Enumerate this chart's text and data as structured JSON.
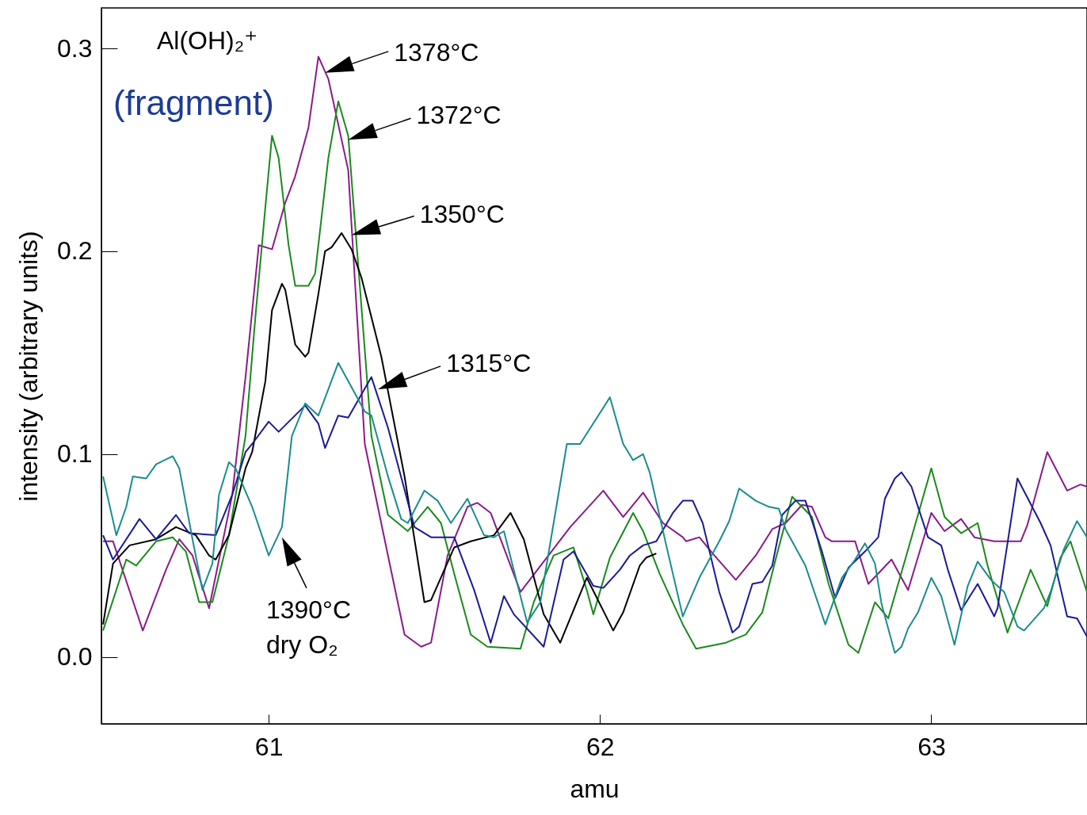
{
  "chart_data": {
    "type": "line",
    "xlabel": "amu",
    "ylabel": "intensity (arbitrary units)",
    "xlim": [
      60.495,
      63.47
    ],
    "ylim": [
      -0.033,
      0.32
    ],
    "xticks": [
      61,
      62,
      63
    ],
    "yticks": [
      {
        "value": 0,
        "label": "0.0"
      },
      0.1,
      0.2,
      0.3
    ],
    "marker": "none",
    "line_style": "solid",
    "annotations": [
      "Al(OH)₂⁺",
      "(fragment)",
      {
        "text": "1378°C",
        "x": 61.17,
        "y": 0.288
      },
      {
        "text": "1372°C",
        "x": 61.24,
        "y": 0.255
      },
      {
        "text": "1350°C",
        "x": 61.25,
        "y": 0.208
      },
      {
        "text": "1315°C",
        "x": 61.33,
        "y": 0.132
      },
      {
        "text": "1390°C\ndry O₂",
        "x": 61.04,
        "y": 0.059
      }
    ],
    "series": [
      {
        "color": "#8b1a8b",
        "x": [
          60.5,
          60.53,
          60.62,
          60.69,
          60.73,
          60.77,
          60.82,
          60.89,
          60.93,
          60.97,
          61.01,
          61.05,
          61.08,
          61.12,
          61.15,
          61.18,
          61.24,
          61.29,
          61.36,
          61.41,
          61.46,
          61.49,
          61.54,
          61.6,
          61.63,
          61.67,
          61.76,
          61.91,
          62.01,
          62.07,
          62.13,
          62.19,
          62.25,
          62.26,
          62.3,
          62.34,
          62.41,
          62.47,
          62.52,
          62.56,
          62.61,
          62.64,
          62.68,
          62.7,
          62.77,
          62.81,
          62.88,
          62.93,
          63.0,
          63.04,
          63.09,
          63.13,
          63.19,
          63.27,
          63.29,
          63.35,
          63.41,
          63.45,
          63.47
        ],
        "values": [
          0.057,
          0.057,
          0.013,
          0.043,
          0.058,
          0.05,
          0.024,
          0.08,
          0.138,
          0.203,
          0.201,
          0.224,
          0.237,
          0.261,
          0.296,
          0.285,
          0.24,
          0.105,
          0.05,
          0.011,
          0.005,
          0.007,
          0.05,
          0.074,
          0.076,
          0.071,
          0.032,
          0.064,
          0.082,
          0.069,
          0.081,
          0.066,
          0.059,
          0.057,
          0.059,
          0.051,
          0.038,
          0.05,
          0.063,
          0.066,
          0.075,
          0.074,
          0.059,
          0.057,
          0.057,
          0.036,
          0.048,
          0.033,
          0.071,
          0.062,
          0.068,
          0.059,
          0.057,
          0.057,
          0.065,
          0.101,
          0.082,
          0.085,
          0.084
        ]
      },
      {
        "color": "#1a8a1a",
        "x": [
          60.5,
          60.57,
          60.6,
          60.66,
          60.71,
          60.75,
          60.79,
          60.83,
          60.88,
          60.93,
          60.96,
          60.99,
          61.01,
          61.03,
          61.06,
          61.08,
          61.12,
          61.14,
          61.18,
          61.21,
          61.24,
          61.31,
          61.36,
          61.42,
          61.48,
          61.52,
          61.56,
          61.61,
          61.66,
          61.76,
          61.8,
          61.86,
          61.92,
          61.96,
          61.98,
          62.03,
          62.1,
          62.13,
          62.18,
          62.25,
          62.29,
          62.35,
          62.38,
          62.44,
          62.49,
          62.53,
          62.58,
          62.64,
          62.69,
          62.75,
          62.78,
          62.83,
          62.87,
          62.93,
          63.0,
          63.04,
          63.09,
          63.14,
          63.17,
          63.23,
          63.3,
          63.35,
          63.39,
          63.42,
          63.47
        ],
        "values": [
          0.013,
          0.048,
          0.045,
          0.057,
          0.059,
          0.052,
          0.027,
          0.027,
          0.06,
          0.109,
          0.168,
          0.222,
          0.257,
          0.246,
          0.203,
          0.183,
          0.183,
          0.189,
          0.246,
          0.274,
          0.257,
          0.109,
          0.07,
          0.062,
          0.074,
          0.066,
          0.041,
          0.011,
          0.005,
          0.004,
          0.027,
          0.05,
          0.054,
          0.033,
          0.021,
          0.049,
          0.071,
          0.062,
          0.041,
          0.016,
          0.004,
          0.006,
          0.007,
          0.011,
          0.022,
          0.048,
          0.079,
          0.069,
          0.036,
          0.006,
          0.002,
          0.027,
          0.019,
          0.053,
          0.093,
          0.069,
          0.061,
          0.066,
          0.045,
          0.012,
          0.043,
          0.025,
          0.049,
          0.057,
          0.032
        ]
      },
      {
        "color": "#000000",
        "x": [
          60.5,
          60.53,
          60.58,
          60.66,
          60.72,
          60.78,
          60.82,
          60.84,
          60.88,
          60.93,
          60.95,
          60.99,
          61.01,
          61.04,
          61.05,
          61.08,
          61.11,
          61.12,
          61.15,
          61.17,
          61.19,
          61.22,
          61.25,
          61.28,
          61.34,
          61.41,
          61.47,
          61.49,
          61.56,
          61.61,
          61.68,
          61.73,
          61.77,
          61.83,
          61.88,
          61.96,
          62.04,
          62.07,
          62.12,
          62.14,
          62.17
        ],
        "values": [
          0.016,
          0.046,
          0.055,
          0.058,
          0.064,
          0.06,
          0.05,
          0.048,
          0.06,
          0.093,
          0.101,
          0.136,
          0.171,
          0.184,
          0.181,
          0.154,
          0.148,
          0.15,
          0.179,
          0.2,
          0.202,
          0.209,
          0.201,
          0.187,
          0.148,
          0.089,
          0.027,
          0.028,
          0.054,
          0.057,
          0.06,
          0.071,
          0.058,
          0.021,
          0.007,
          0.039,
          0.013,
          0.022,
          0.045,
          0.049,
          0.051
        ]
      },
      {
        "color": "#1a1a96",
        "x": [
          60.5,
          60.53,
          60.61,
          60.66,
          60.72,
          60.76,
          60.84,
          60.89,
          60.93,
          60.95,
          61.0,
          61.03,
          61.11,
          61.15,
          61.17,
          61.21,
          61.24,
          61.31,
          61.36,
          61.44,
          61.49,
          61.56,
          61.62,
          61.67,
          61.71,
          61.74,
          61.83,
          61.89,
          61.92,
          61.98,
          62.01,
          62.06,
          62.09,
          62.13,
          62.17,
          62.22,
          62.25,
          62.28,
          62.31,
          62.36,
          62.4,
          62.42,
          62.46,
          62.49,
          62.52,
          62.55,
          62.59,
          62.62,
          62.67,
          62.71,
          62.75,
          62.8,
          62.84,
          62.86,
          62.89,
          62.91,
          62.94,
          62.99,
          63.03,
          63.05,
          63.09,
          63.14,
          63.19,
          63.2,
          63.26,
          63.33,
          63.36,
          63.41,
          63.44,
          63.47
        ],
        "values": [
          0.06,
          0.048,
          0.068,
          0.058,
          0.07,
          0.061,
          0.06,
          0.08,
          0.101,
          0.105,
          0.116,
          0.111,
          0.124,
          0.115,
          0.103,
          0.119,
          0.118,
          0.138,
          0.113,
          0.064,
          0.059,
          0.059,
          0.033,
          0.007,
          0.03,
          0.021,
          0.005,
          0.048,
          0.052,
          0.035,
          0.034,
          0.043,
          0.05,
          0.055,
          0.057,
          0.071,
          0.077,
          0.077,
          0.066,
          0.032,
          0.012,
          0.015,
          0.036,
          0.037,
          0.045,
          0.07,
          0.077,
          0.077,
          0.052,
          0.029,
          0.044,
          0.052,
          0.059,
          0.078,
          0.088,
          0.091,
          0.084,
          0.059,
          0.055,
          0.043,
          0.023,
          0.036,
          0.02,
          0.024,
          0.088,
          0.066,
          0.055,
          0.02,
          0.019,
          0.01
        ]
      },
      {
        "color": "#1a8c8c",
        "x": [
          60.5,
          60.54,
          60.57,
          60.59,
          60.63,
          60.66,
          60.71,
          60.73,
          60.77,
          60.8,
          60.83,
          60.85,
          60.88,
          60.9,
          60.95,
          61.0,
          61.04,
          61.07,
          61.11,
          61.15,
          61.21,
          61.24,
          61.29,
          61.31,
          61.36,
          61.4,
          61.42,
          61.47,
          61.51,
          61.55,
          61.6,
          61.65,
          61.68,
          61.71,
          61.78,
          61.82,
          61.9,
          61.94,
          62.03,
          62.07,
          62.1,
          62.13,
          62.15,
          62.2,
          62.25,
          62.3,
          62.36,
          62.39,
          62.42,
          62.47,
          62.51,
          62.54,
          62.56,
          62.62,
          62.68,
          62.73,
          62.77,
          62.8,
          62.83,
          62.85,
          62.89,
          62.91,
          62.93,
          62.96,
          63.0,
          63.03,
          63.07,
          63.11,
          63.14,
          63.18,
          63.22,
          63.26,
          63.28,
          63.34,
          63.36,
          63.4,
          63.44,
          63.47
        ],
        "values": [
          0.089,
          0.06,
          0.074,
          0.089,
          0.088,
          0.095,
          0.099,
          0.093,
          0.058,
          0.033,
          0.046,
          0.08,
          0.096,
          0.093,
          0.074,
          0.05,
          0.064,
          0.109,
          0.125,
          0.119,
          0.145,
          0.136,
          0.121,
          0.119,
          0.089,
          0.068,
          0.066,
          0.082,
          0.077,
          0.066,
          0.078,
          0.06,
          0.059,
          0.062,
          0.017,
          0.027,
          0.105,
          0.105,
          0.128,
          0.105,
          0.097,
          0.1,
          0.091,
          0.055,
          0.02,
          0.039,
          0.057,
          0.067,
          0.083,
          0.077,
          0.074,
          0.073,
          0.063,
          0.045,
          0.016,
          0.039,
          0.048,
          0.056,
          0.046,
          0.026,
          0.002,
          0.005,
          0.014,
          0.022,
          0.039,
          0.03,
          0.006,
          0.035,
          0.047,
          0.038,
          0.032,
          0.015,
          0.013,
          0.024,
          0.032,
          0.053,
          0.067,
          0.059
        ]
      }
    ]
  }
}
